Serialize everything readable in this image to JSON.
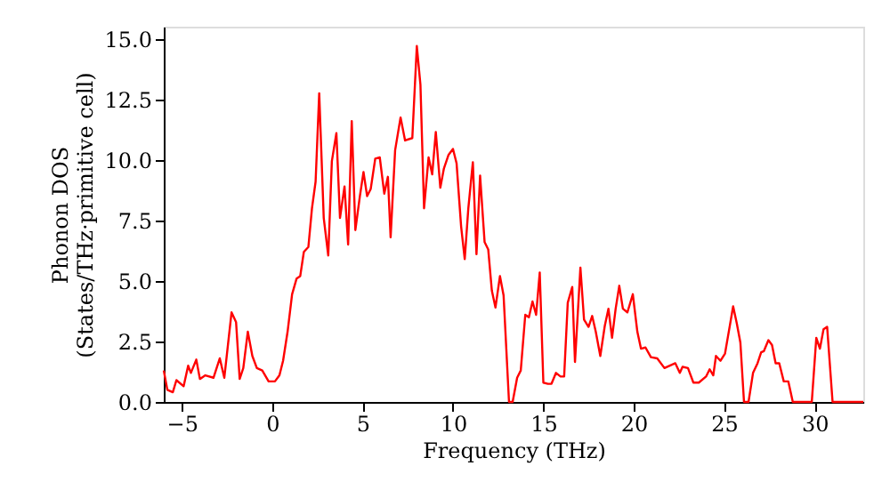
{
  "chart_data": {
    "type": "line",
    "xlabel": "Frequency (THz)",
    "ylabel": "Phonon DOS\n(States/THz·primitive cell)",
    "x": [
      -6.0,
      -5.8,
      -5.5,
      -5.3,
      -4.9,
      -4.65,
      -4.5,
      -4.2,
      -4.0,
      -3.7,
      -3.25,
      -2.9,
      -2.65,
      -2.25,
      -2.0,
      -1.8,
      -1.6,
      -1.35,
      -1.1,
      -0.85,
      -0.55,
      -0.2,
      0.15,
      0.4,
      0.6,
      0.85,
      1.1,
      1.35,
      1.55,
      1.75,
      2.0,
      2.2,
      2.4,
      2.6,
      2.85,
      3.1,
      3.3,
      3.55,
      3.75,
      4.0,
      4.2,
      4.4,
      4.6,
      4.85,
      5.05,
      5.25,
      5.45,
      5.7,
      5.95,
      6.2,
      6.4,
      6.55,
      6.8,
      7.1,
      7.35,
      7.75,
      8.0,
      8.2,
      8.4,
      8.65,
      8.85,
      9.05,
      9.3,
      9.5,
      9.75,
      10.0,
      10.2,
      10.45,
      10.65,
      10.85,
      11.1,
      11.3,
      11.5,
      11.75,
      11.95,
      12.15,
      12.35,
      12.6,
      12.8,
      13.1,
      13.3,
      13.55,
      13.75,
      14.0,
      14.2,
      14.4,
      14.6,
      14.8,
      15.0,
      15.25,
      15.45,
      15.7,
      15.95,
      16.15,
      16.35,
      16.6,
      16.75,
      17.05,
      17.25,
      17.5,
      17.7,
      17.9,
      18.15,
      18.4,
      18.6,
      18.8,
      19.0,
      19.2,
      19.4,
      19.65,
      19.95,
      20.2,
      20.4,
      20.65,
      20.95,
      21.3,
      21.7,
      22.0,
      22.3,
      22.55,
      22.7,
      23.0,
      23.3,
      23.6,
      24.0,
      24.2,
      24.4,
      24.55,
      24.8,
      25.05,
      25.2,
      25.5,
      25.7,
      25.9,
      26.1,
      26.35,
      26.6,
      26.85,
      27.05,
      27.2,
      27.45,
      27.65,
      27.85,
      28.05,
      28.3,
      28.55,
      28.8,
      29.85,
      30.1,
      30.3,
      30.5,
      30.7,
      31.0,
      32.7
    ],
    "series": [
      {
        "color": "#ff0000",
        "values": [
          1.3,
          0.5,
          0.4,
          0.9,
          0.65,
          1.5,
          1.2,
          1.75,
          0.95,
          1.1,
          1.0,
          1.8,
          1.0,
          3.7,
          3.3,
          0.95,
          1.4,
          2.9,
          1.9,
          1.4,
          1.3,
          0.85,
          0.85,
          1.1,
          1.7,
          2.9,
          4.45,
          5.1,
          5.2,
          6.2,
          6.4,
          8.0,
          9.1,
          12.75,
          7.6,
          6.05,
          9.95,
          11.1,
          7.6,
          8.9,
          6.5,
          11.6,
          7.1,
          8.5,
          9.5,
          8.5,
          8.8,
          10.05,
          10.1,
          8.6,
          9.3,
          6.8,
          10.4,
          11.75,
          10.8,
          10.9,
          14.7,
          13.1,
          8.0,
          10.1,
          9.4,
          11.15,
          8.85,
          9.65,
          10.2,
          10.45,
          9.85,
          7.25,
          5.9,
          8.0,
          9.9,
          6.1,
          9.35,
          6.6,
          6.3,
          4.6,
          3.9,
          5.2,
          4.4,
          0,
          0,
          1.0,
          1.3,
          3.6,
          3.5,
          4.15,
          3.6,
          5.35,
          0.8,
          0.75,
          0.75,
          1.2,
          1.05,
          1.05,
          4.1,
          4.75,
          1.65,
          5.55,
          3.4,
          3.1,
          3.55,
          2.9,
          1.9,
          3.15,
          3.85,
          2.65,
          3.85,
          4.8,
          3.85,
          3.7,
          4.45,
          2.9,
          2.2,
          2.25,
          1.85,
          1.8,
          1.4,
          1.5,
          1.6,
          1.2,
          1.45,
          1.4,
          0.8,
          0.8,
          1.05,
          1.35,
          1.1,
          1.9,
          1.7,
          2.0,
          2.65,
          3.95,
          3.25,
          2.45,
          0,
          0,
          1.2,
          1.6,
          2.05,
          2.1,
          2.55,
          2.35,
          1.6,
          1.6,
          0.85,
          0.85,
          0,
          0,
          2.65,
          2.2,
          3.0,
          3.1,
          0,
          0
        ]
      }
    ],
    "xlim": [
      -6,
      32.7
    ],
    "ylim": [
      0,
      15.5
    ],
    "xticks": [
      {
        "value": -5,
        "label": "−5"
      },
      0,
      5,
      10,
      15,
      20,
      25,
      30
    ],
    "yticks": [
      {
        "value": 0,
        "label": "0.0"
      },
      2.5,
      {
        "value": 5,
        "label": "5.0"
      },
      7.5,
      {
        "value": 10,
        "label": "10.0"
      },
      12.5,
      {
        "value": 15,
        "label": "15.0"
      }
    ],
    "grid": false
  }
}
